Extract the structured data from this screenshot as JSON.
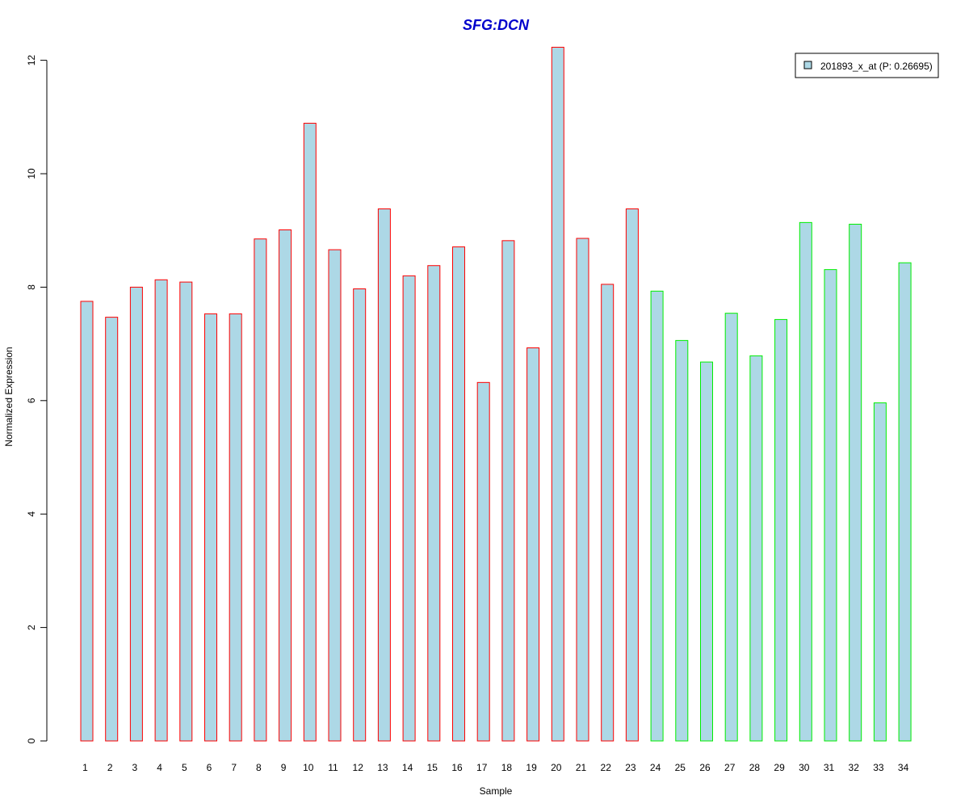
{
  "colors": {
    "title": "#0000cc",
    "bar_fill": "#add8e6",
    "group1_border": "#ff0000",
    "group2_border": "#00ee00",
    "axis": "#000000"
  },
  "chart_data": {
    "type": "bar",
    "title": "SFG:DCN",
    "xlabel": "Sample",
    "ylabel": "Normalized Expression",
    "ylim": [
      0,
      12.2
    ],
    "yticks": [
      0,
      2,
      4,
      6,
      8,
      10,
      12
    ],
    "grid": false,
    "legend": {
      "position": "top-right",
      "entries": [
        "201893_x_at (P: 0.26695)"
      ]
    },
    "categories": [
      "1",
      "2",
      "3",
      "4",
      "5",
      "6",
      "7",
      "8",
      "9",
      "10",
      "11",
      "12",
      "13",
      "14",
      "15",
      "16",
      "17",
      "18",
      "19",
      "20",
      "21",
      "22",
      "23",
      "24",
      "25",
      "26",
      "27",
      "28",
      "29",
      "30",
      "31",
      "32",
      "33",
      "34"
    ],
    "series": [
      {
        "name": "201893_x_at (P: 0.26695)",
        "values": [
          7.75,
          7.47,
          8.0,
          8.13,
          8.09,
          7.53,
          7.53,
          8.85,
          9.01,
          10.89,
          8.66,
          7.97,
          9.38,
          8.2,
          8.38,
          8.71,
          6.32,
          8.82,
          6.93,
          12.23,
          8.86,
          8.05,
          9.38,
          7.93,
          7.06,
          6.68,
          7.54,
          6.79,
          7.43,
          9.14,
          8.31,
          9.11,
          5.96,
          8.43
        ],
        "groups": [
          1,
          1,
          1,
          1,
          1,
          1,
          1,
          1,
          1,
          1,
          1,
          1,
          1,
          1,
          1,
          1,
          1,
          1,
          1,
          1,
          1,
          1,
          1,
          2,
          2,
          2,
          2,
          2,
          2,
          2,
          2,
          2,
          2,
          2
        ]
      }
    ]
  }
}
